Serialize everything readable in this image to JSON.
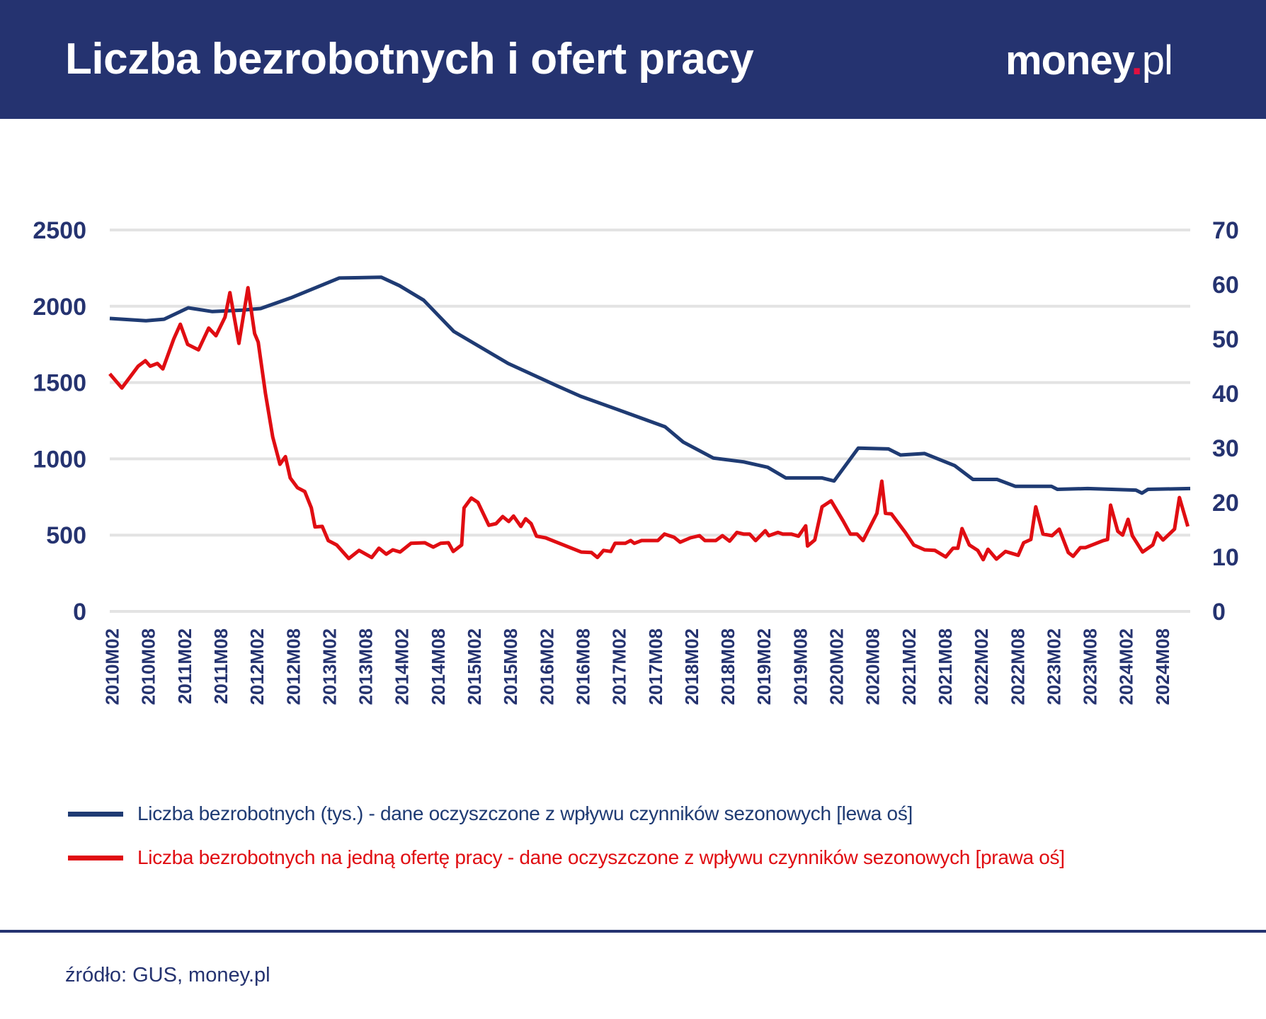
{
  "header": {
    "title": "Liczba bezrobotnych i ofert pracy",
    "logo_main": "money",
    "logo_dot": ".",
    "logo_suffix": "pl"
  },
  "colors": {
    "header_bg": "#253370",
    "series_unemployed": "#1f3b73",
    "series_per_offer": "#e00d12",
    "axis_text": "#253370",
    "grid": "#e3e3e3",
    "logo_dot": "#e2103f"
  },
  "legend": {
    "items": [
      {
        "label": "Liczba bezrobotnych (tys.) - dane oczyszczone z wpływu czynników sezonowych [lewa oś]",
        "color": "#1f3b73"
      },
      {
        "label": "Liczba bezrobotnych na jedną ofertę pracy - dane oczyszczone z wpływu czynników sezonowych [prawa oś]",
        "color": "#e00d12"
      }
    ]
  },
  "footer": {
    "source": "źródło: GUS, money.pl"
  },
  "chart_data": {
    "type": "line",
    "title": "Liczba bezrobotnych i ofert pracy",
    "xlabel": "",
    "ylabel_left": "Liczba bezrobotnych (tys.)",
    "ylabel_right": "Liczba bezrobotnych na jedną ofertę pracy",
    "x_start": "2010M01",
    "x_end": "2024M12",
    "x_tick_labels": [
      "2010M02",
      "2010M08",
      "2011M02",
      "2011M08",
      "2012M02",
      "2012M08",
      "2013M02",
      "2013M08",
      "2014M02",
      "2014M08",
      "2015M02",
      "2015M08",
      "2016M02",
      "2016M08",
      "2017M02",
      "2017M08",
      "2018M02",
      "2018M08",
      "2019M02",
      "2019M08",
      "2020M02",
      "2020M08",
      "2021M02",
      "2021M08",
      "2022M02",
      "2022M08",
      "2023M02",
      "2023M08",
      "2024M02",
      "2024M08"
    ],
    "ylim_left": [
      0,
      2500
    ],
    "yticks_left": [
      0,
      500,
      1000,
      1500,
      2000,
      2500
    ],
    "ylim_right": [
      0,
      70
    ],
    "yticks_right": [
      0,
      10,
      20,
      30,
      40,
      50,
      60,
      70
    ],
    "grid": true,
    "legend_position": "bottom",
    "series": [
      {
        "name": "Liczba bezrobotnych (tys.) - dane oczyszczone z wpływu czynników sezonowych [lewa oś]",
        "axis": "left",
        "points_month_index_value": [
          [
            0,
            1920
          ],
          [
            6,
            1905
          ],
          [
            9,
            1915
          ],
          [
            13,
            1990
          ],
          [
            17,
            1965
          ],
          [
            22,
            1975
          ],
          [
            25,
            1985
          ],
          [
            30,
            2055
          ],
          [
            38,
            2185
          ],
          [
            45,
            2190
          ],
          [
            48,
            2135
          ],
          [
            52,
            2040
          ],
          [
            57,
            1835
          ],
          [
            66,
            1625
          ],
          [
            74,
            1480
          ],
          [
            78,
            1410
          ],
          [
            84,
            1325
          ],
          [
            92,
            1210
          ],
          [
            95,
            1110
          ],
          [
            100,
            1005
          ],
          [
            105,
            980
          ],
          [
            109,
            945
          ],
          [
            112,
            875
          ],
          [
            118,
            875
          ],
          [
            120,
            855
          ],
          [
            124,
            1070
          ],
          [
            129,
            1065
          ],
          [
            131,
            1025
          ],
          [
            135,
            1035
          ],
          [
            140,
            955
          ],
          [
            143,
            865
          ],
          [
            147,
            865
          ],
          [
            150,
            820
          ],
          [
            156,
            820
          ],
          [
            157,
            800
          ],
          [
            162,
            805
          ],
          [
            170,
            795
          ],
          [
            171,
            775
          ],
          [
            172,
            800
          ],
          [
            179,
            805
          ]
        ]
      },
      {
        "name": "Liczba bezrobotnych na jedną ofertę pracy - dane oczyszczone z wpływu czynników sezonowych [prawa oś]",
        "axis": "right",
        "points_month_index_value": [
          [
            0,
            43.6
          ],
          [
            2,
            41
          ],
          [
            4.7,
            45
          ],
          [
            5.9,
            46
          ],
          [
            6.7,
            45
          ],
          [
            7.9,
            45.5
          ],
          [
            8.8,
            44.5
          ],
          [
            10.6,
            50
          ],
          [
            11.7,
            52.7
          ],
          [
            12.9,
            49
          ],
          [
            14.7,
            48
          ],
          [
            16.4,
            52
          ],
          [
            17.6,
            50.6
          ],
          [
            19.1,
            54
          ],
          [
            19.9,
            58.5
          ],
          [
            21.4,
            49.2
          ],
          [
            22.9,
            59.4
          ],
          [
            24,
            51
          ],
          [
            24.6,
            49.4
          ],
          [
            25.8,
            40
          ],
          [
            27,
            32
          ],
          [
            28.2,
            27
          ],
          [
            29.1,
            28.4
          ],
          [
            29.9,
            24.5
          ],
          [
            31.1,
            22.7
          ],
          [
            32.3,
            22
          ],
          [
            33.4,
            19
          ],
          [
            34,
            15.5
          ],
          [
            35.2,
            15.6
          ],
          [
            36.2,
            13
          ],
          [
            37.6,
            12.2
          ],
          [
            39.6,
            9.7
          ],
          [
            41.3,
            11.2
          ],
          [
            43.4,
            9.9
          ],
          [
            44.6,
            11.6
          ],
          [
            45.8,
            10.5
          ],
          [
            46.9,
            11.3
          ],
          [
            48.1,
            10.9
          ],
          [
            49.9,
            12.5
          ],
          [
            52.2,
            12.6
          ],
          [
            53.6,
            11.8
          ],
          [
            54.8,
            12.5
          ],
          [
            56.1,
            12.6
          ],
          [
            56.9,
            11
          ],
          [
            58.3,
            12.2
          ],
          [
            58.7,
            19
          ],
          [
            59.9,
            20.8
          ],
          [
            61,
            20
          ],
          [
            62.8,
            15.8
          ],
          [
            64,
            16.1
          ],
          [
            65.1,
            17.4
          ],
          [
            66.1,
            16.5
          ],
          [
            66.9,
            17.5
          ],
          [
            68.1,
            15.6
          ],
          [
            68.9,
            17
          ],
          [
            69.8,
            16.1
          ],
          [
            70.7,
            13.8
          ],
          [
            72.2,
            13.5
          ],
          [
            78.1,
            10.9
          ],
          [
            79.8,
            10.8
          ],
          [
            80.8,
            9.9
          ],
          [
            81.8,
            11.2
          ],
          [
            83,
            11
          ],
          [
            83.7,
            12.5
          ],
          [
            85.4,
            12.5
          ],
          [
            86.3,
            13
          ],
          [
            86.9,
            12.5
          ],
          [
            88.1,
            13
          ],
          [
            90.8,
            13
          ],
          [
            91.9,
            14.2
          ],
          [
            93.5,
            13.6
          ],
          [
            94.5,
            12.7
          ],
          [
            96.2,
            13.5
          ],
          [
            97.7,
            13.9
          ],
          [
            98.6,
            13
          ],
          [
            100.4,
            13
          ],
          [
            101.5,
            13.9
          ],
          [
            102.7,
            12.9
          ],
          [
            103.9,
            14.5
          ],
          [
            105,
            14.2
          ],
          [
            106,
            14.2
          ],
          [
            107,
            13
          ],
          [
            108.6,
            14.8
          ],
          [
            109.2,
            13.9
          ],
          [
            110.7,
            14.5
          ],
          [
            111.5,
            14.2
          ],
          [
            112.9,
            14.2
          ],
          [
            114.1,
            13.8
          ],
          [
            115.3,
            15.7
          ],
          [
            115.6,
            12
          ],
          [
            116.8,
            13.1
          ],
          [
            118,
            19.2
          ],
          [
            119.5,
            20.3
          ],
          [
            121.5,
            16.6
          ],
          [
            122.7,
            14.2
          ],
          [
            123.8,
            14.2
          ],
          [
            124.8,
            13
          ],
          [
            127.1,
            18
          ],
          [
            127.9,
            23.9
          ],
          [
            128.5,
            18
          ],
          [
            129.5,
            17.9
          ],
          [
            131.8,
            14.5
          ],
          [
            133.2,
            12.2
          ],
          [
            135,
            11.3
          ],
          [
            136.7,
            11.2
          ],
          [
            138.5,
            10
          ],
          [
            139.7,
            11.6
          ],
          [
            140.5,
            11.6
          ],
          [
            141.2,
            15.2
          ],
          [
            142.4,
            12.2
          ],
          [
            143.8,
            11.2
          ],
          [
            144.7,
            9.5
          ],
          [
            145.5,
            11.4
          ],
          [
            146.9,
            9.6
          ],
          [
            148.4,
            11
          ],
          [
            150.5,
            10.3
          ],
          [
            151.4,
            12.6
          ],
          [
            152.6,
            13.2
          ],
          [
            153.4,
            19.2
          ],
          [
            154.6,
            14.2
          ],
          [
            156.1,
            13.9
          ],
          [
            157.3,
            15.1
          ],
          [
            158.8,
            10.8
          ],
          [
            159.6,
            10.1
          ],
          [
            160.8,
            11.7
          ],
          [
            161.6,
            11.7
          ],
          [
            164.6,
            13
          ],
          [
            165.3,
            13.2
          ],
          [
            165.8,
            19.5
          ],
          [
            167,
            14.7
          ],
          [
            167.8,
            14
          ],
          [
            168.7,
            16.9
          ],
          [
            169.4,
            13.9
          ],
          [
            171.1,
            10.9
          ],
          [
            172.8,
            12.2
          ],
          [
            173.5,
            14.4
          ],
          [
            174.5,
            13.1
          ],
          [
            176.4,
            15.1
          ],
          [
            177.2,
            20.9
          ],
          [
            178.6,
            15.6
          ]
        ]
      }
    ]
  }
}
